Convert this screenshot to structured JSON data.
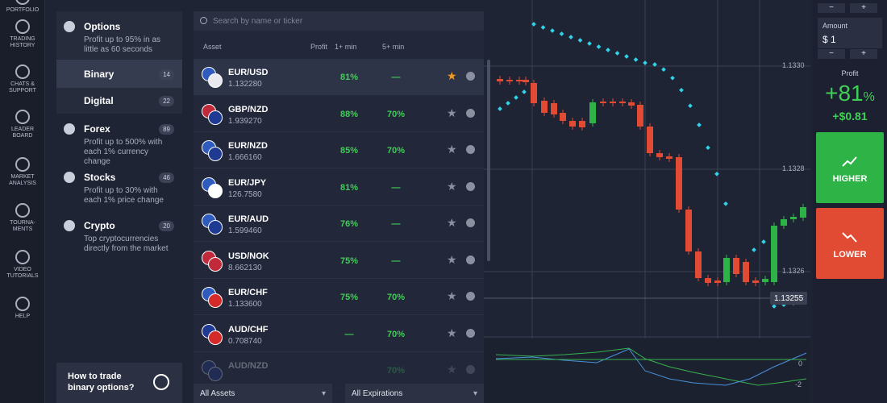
{
  "sidebar": {
    "items": [
      {
        "lines": [
          "PORTFOLIO"
        ]
      },
      {
        "lines": [
          "TRADING",
          "HISTORY"
        ]
      },
      {
        "lines": [
          "CHATS &",
          "SUPPORT"
        ]
      },
      {
        "lines": [
          "LEADER",
          "BOARD"
        ]
      },
      {
        "lines": [
          "MARKET",
          "ANALYSIS"
        ]
      },
      {
        "lines": [
          "TOURNA-",
          "MENTS"
        ]
      },
      {
        "lines": [
          "VIDEO",
          "TUTORIALS"
        ]
      },
      {
        "lines": [
          "HELP"
        ]
      }
    ]
  },
  "categories": [
    {
      "name": "Options",
      "description": "Profit up to 95% in as little as 60 seconds"
    },
    {
      "name": "Binary",
      "count": 14
    },
    {
      "name": "Digital",
      "count": 22
    },
    {
      "name": "Forex",
      "count": 89,
      "description": "Profit up to 500% with each 1% currency change"
    },
    {
      "name": "Stocks",
      "count": 46,
      "description": "Profit up to 30% with each 1% price change"
    },
    {
      "name": "Crypto",
      "count": 20,
      "description": "Top cryptocurrencies directly from the market"
    }
  ],
  "video": {
    "title": "How to trade binary options?"
  },
  "asset_list": {
    "search_placeholder": "Search by name or ticker",
    "columns": [
      "Asset",
      "Profit",
      "1+ min",
      "5+ min"
    ],
    "rows": [
      {
        "name": "EUR/USD",
        "price": "1.132280",
        "profit_1": "81%",
        "profit_5": "—"
      },
      {
        "name": "GBP/NZD",
        "price": "1.939270",
        "profit_1": "88%",
        "profit_5": "70%"
      },
      {
        "name": "EUR/NZD",
        "price": "1.666160",
        "profit_1": "85%",
        "profit_5": "70%"
      },
      {
        "name": "EUR/JPY",
        "price": "126.7580",
        "profit_1": "81%",
        "profit_5": "—"
      },
      {
        "name": "EUR/AUD",
        "price": "1.599460",
        "profit_1": "76%",
        "profit_5": "—"
      },
      {
        "name": "USD/NOK",
        "price": "8.662130",
        "profit_1": "75%",
        "profit_5": "—"
      },
      {
        "name": "EUR/CHF",
        "price": "1.133600",
        "profit_1": "75%",
        "profit_5": "70%"
      },
      {
        "name": "AUD/CHF",
        "price": "0.708740",
        "profit_1": "—",
        "profit_5": "70%"
      },
      {
        "name": "AUD/NZD",
        "profit_5": "70%"
      }
    ],
    "filters": [
      "All Assets",
      "All Expirations"
    ]
  },
  "chart": {
    "price_labels": [
      "1.1330",
      "1.1328",
      "1.1326"
    ],
    "current_price": "1.13255",
    "indicator_labels": [
      "0",
      "-2"
    ]
  },
  "trade_panel": {
    "stepper": [
      "−",
      "+"
    ],
    "amount_label": "Amount",
    "amount": "$ 1",
    "profit_label": "Profit",
    "profit_percent": "+81",
    "profit_percent_unit": "%",
    "profit_amount": "+$0.81",
    "higher": "HIGHER",
    "lower": "LOWER"
  }
}
